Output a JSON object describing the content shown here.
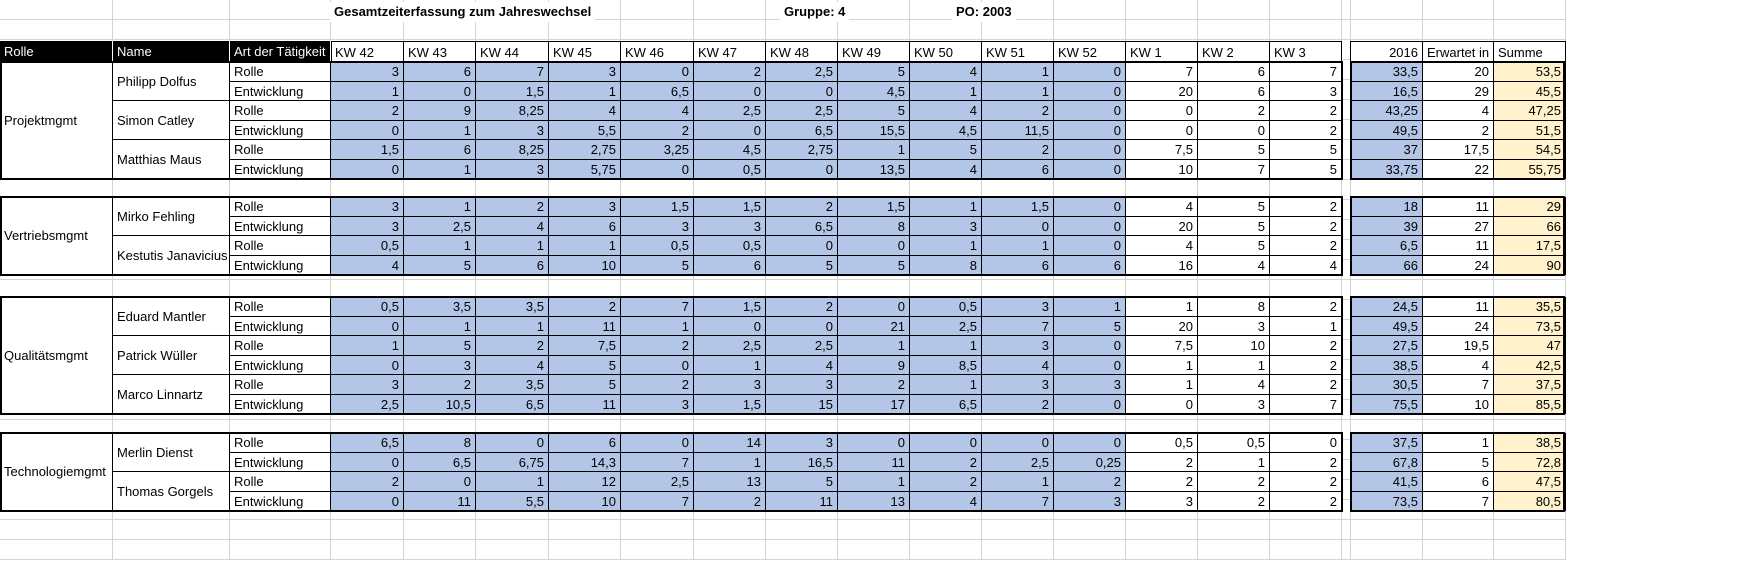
{
  "title": "Gesamtzeiterfassung zum Jahreswechsel",
  "gruppe": "Gruppe: 4",
  "po": "PO: 2003",
  "headers": {
    "rolle": "Rolle",
    "name": "Name",
    "art": "Art der Tätigkeit",
    "weeks": [
      "KW 42",
      "KW 43",
      "KW 44",
      "KW 45",
      "KW 46",
      "KW 47",
      "KW 48",
      "KW 49",
      "KW 50",
      "KW 51",
      "KW 52",
      "KW 1",
      "KW 2",
      "KW 3"
    ],
    "year": "2016",
    "erwartet": "Erwartet in",
    "summe": "Summe"
  },
  "groups": [
    {
      "role": "Projektmgmt",
      "people": [
        {
          "name": "Philipp Dolfus",
          "rows": [
            {
              "type": "Rolle",
              "weeks": [
                "3",
                "6",
                "7",
                "3",
                "0",
                "2",
                "2,5",
                "5",
                "4",
                "1",
                "0",
                "7",
                "6",
                "7"
              ],
              "year": "33,5",
              "erwartet": "20",
              "summe": "53,5"
            },
            {
              "type": "Entwicklung",
              "weeks": [
                "1",
                "0",
                "1,5",
                "1",
                "6,5",
                "0",
                "0",
                "4,5",
                "1",
                "1",
                "0",
                "20",
                "6",
                "3"
              ],
              "year": "16,5",
              "erwartet": "29",
              "summe": "45,5"
            }
          ]
        },
        {
          "name": "Simon Catley",
          "rows": [
            {
              "type": "Rolle",
              "weeks": [
                "2",
                "9",
                "8,25",
                "4",
                "4",
                "2,5",
                "2,5",
                "5",
                "4",
                "2",
                "0",
                "0",
                "2",
                "2"
              ],
              "year": "43,25",
              "erwartet": "4",
              "summe": "47,25"
            },
            {
              "type": "Entwicklung",
              "weeks": [
                "0",
                "1",
                "3",
                "5,5",
                "2",
                "0",
                "6,5",
                "15,5",
                "4,5",
                "11,5",
                "0",
                "0",
                "0",
                "2"
              ],
              "year": "49,5",
              "erwartet": "2",
              "summe": "51,5"
            }
          ]
        },
        {
          "name": "Matthias Maus",
          "rows": [
            {
              "type": "Rolle",
              "weeks": [
                "1,5",
                "6",
                "8,25",
                "2,75",
                "3,25",
                "4,5",
                "2,75",
                "1",
                "5",
                "2",
                "0",
                "7,5",
                "5",
                "5"
              ],
              "year": "37",
              "erwartet": "17,5",
              "summe": "54,5"
            },
            {
              "type": "Entwicklung",
              "weeks": [
                "0",
                "1",
                "3",
                "5,75",
                "0",
                "0,5",
                "0",
                "13,5",
                "4",
                "6",
                "0",
                "10",
                "7",
                "5"
              ],
              "year": "33,75",
              "erwartet": "22",
              "summe": "55,75"
            }
          ]
        }
      ]
    },
    {
      "role": "Vertriebsmgmt",
      "people": [
        {
          "name": "Mirko Fehling",
          "rows": [
            {
              "type": "Rolle",
              "weeks": [
                "3",
                "1",
                "2",
                "3",
                "1,5",
                "1,5",
                "2",
                "1,5",
                "1",
                "1,5",
                "0",
                "4",
                "5",
                "2"
              ],
              "year": "18",
              "erwartet": "11",
              "summe": "29"
            },
            {
              "type": "Entwicklung",
              "weeks": [
                "3",
                "2,5",
                "4",
                "6",
                "3",
                "3",
                "6,5",
                "8",
                "3",
                "0",
                "0",
                "20",
                "5",
                "2"
              ],
              "year": "39",
              "erwartet": "27",
              "summe": "66"
            }
          ]
        },
        {
          "name": "Kestutis Janavicius",
          "rows": [
            {
              "type": "Rolle",
              "weeks": [
                "0,5",
                "1",
                "1",
                "1",
                "0,5",
                "0,5",
                "0",
                "0",
                "1",
                "1",
                "0",
                "4",
                "5",
                "2"
              ],
              "year": "6,5",
              "erwartet": "11",
              "summe": "17,5"
            },
            {
              "type": "Entwicklung",
              "weeks": [
                "4",
                "5",
                "6",
                "10",
                "5",
                "6",
                "5",
                "5",
                "8",
                "6",
                "6",
                "16",
                "4",
                "4"
              ],
              "year": "66",
              "erwartet": "24",
              "summe": "90"
            }
          ]
        }
      ]
    },
    {
      "role": "Qualitätsmgmt",
      "people": [
        {
          "name": "Eduard Mantler",
          "rows": [
            {
              "type": "Rolle",
              "weeks": [
                "0,5",
                "3,5",
                "3,5",
                "2",
                "7",
                "1,5",
                "2",
                "0",
                "0,5",
                "3",
                "1",
                "1",
                "8",
                "2"
              ],
              "year": "24,5",
              "erwartet": "11",
              "summe": "35,5"
            },
            {
              "type": "Entwicklung",
              "weeks": [
                "0",
                "1",
                "1",
                "11",
                "1",
                "0",
                "0",
                "21",
                "2,5",
                "7",
                "5",
                "20",
                "3",
                "1"
              ],
              "year": "49,5",
              "erwartet": "24",
              "summe": "73,5"
            }
          ]
        },
        {
          "name": "Patrick Wüller",
          "rows": [
            {
              "type": "Rolle",
              "weeks": [
                "1",
                "5",
                "2",
                "7,5",
                "2",
                "2,5",
                "2,5",
                "1",
                "1",
                "3",
                "0",
                "7,5",
                "10",
                "2"
              ],
              "year": "27,5",
              "erwartet": "19,5",
              "summe": "47"
            },
            {
              "type": "Entwicklung",
              "weeks": [
                "0",
                "3",
                "4",
                "5",
                "0",
                "1",
                "4",
                "9",
                "8,5",
                "4",
                "0",
                "1",
                "1",
                "2"
              ],
              "year": "38,5",
              "erwartet": "4",
              "summe": "42,5"
            }
          ]
        },
        {
          "name": "Marco Linnartz",
          "rows": [
            {
              "type": "Rolle",
              "weeks": [
                "3",
                "2",
                "3,5",
                "5",
                "2",
                "3",
                "3",
                "2",
                "1",
                "3",
                "3",
                "1",
                "4",
                "2"
              ],
              "year": "30,5",
              "erwartet": "7",
              "summe": "37,5"
            },
            {
              "type": "Entwicklung",
              "weeks": [
                "2,5",
                "10,5",
                "6,5",
                "11",
                "3",
                "1,5",
                "15",
                "17",
                "6,5",
                "2",
                "0",
                "0",
                "3",
                "7"
              ],
              "year": "75,5",
              "erwartet": "10",
              "summe": "85,5"
            }
          ]
        }
      ]
    },
    {
      "role": "Technologiemgmt",
      "people": [
        {
          "name": "Merlin Dienst",
          "rows": [
            {
              "type": "Rolle",
              "weeks": [
                "6,5",
                "8",
                "0",
                "6",
                "0",
                "14",
                "3",
                "0",
                "0",
                "0",
                "0",
                "0,5",
                "0,5",
                "0"
              ],
              "year": "37,5",
              "erwartet": "1",
              "summe": "38,5"
            },
            {
              "type": "Entwicklung",
              "weeks": [
                "0",
                "6,5",
                "6,75",
                "14,3",
                "7",
                "1",
                "16,5",
                "11",
                "2",
                "2,5",
                "0,25",
                "2",
                "1",
                "2"
              ],
              "year": "67,8",
              "erwartet": "5",
              "summe": "72,8"
            }
          ]
        },
        {
          "name": "Thomas Gorgels",
          "rows": [
            {
              "type": "Rolle",
              "weeks": [
                "2",
                "0",
                "1",
                "12",
                "2,5",
                "13",
                "5",
                "1",
                "2",
                "1",
                "2",
                "2",
                "2",
                "2"
              ],
              "year": "41,5",
              "erwartet": "6",
              "summe": "47,5"
            },
            {
              "type": "Entwicklung",
              "weeks": [
                "0",
                "11",
                "5,5",
                "10",
                "7",
                "2",
                "11",
                "13",
                "4",
                "7",
                "3",
                "3",
                "2",
                "2"
              ],
              "year": "73,5",
              "erwartet": "7",
              "summe": "80,5"
            }
          ]
        }
      ]
    }
  ]
}
